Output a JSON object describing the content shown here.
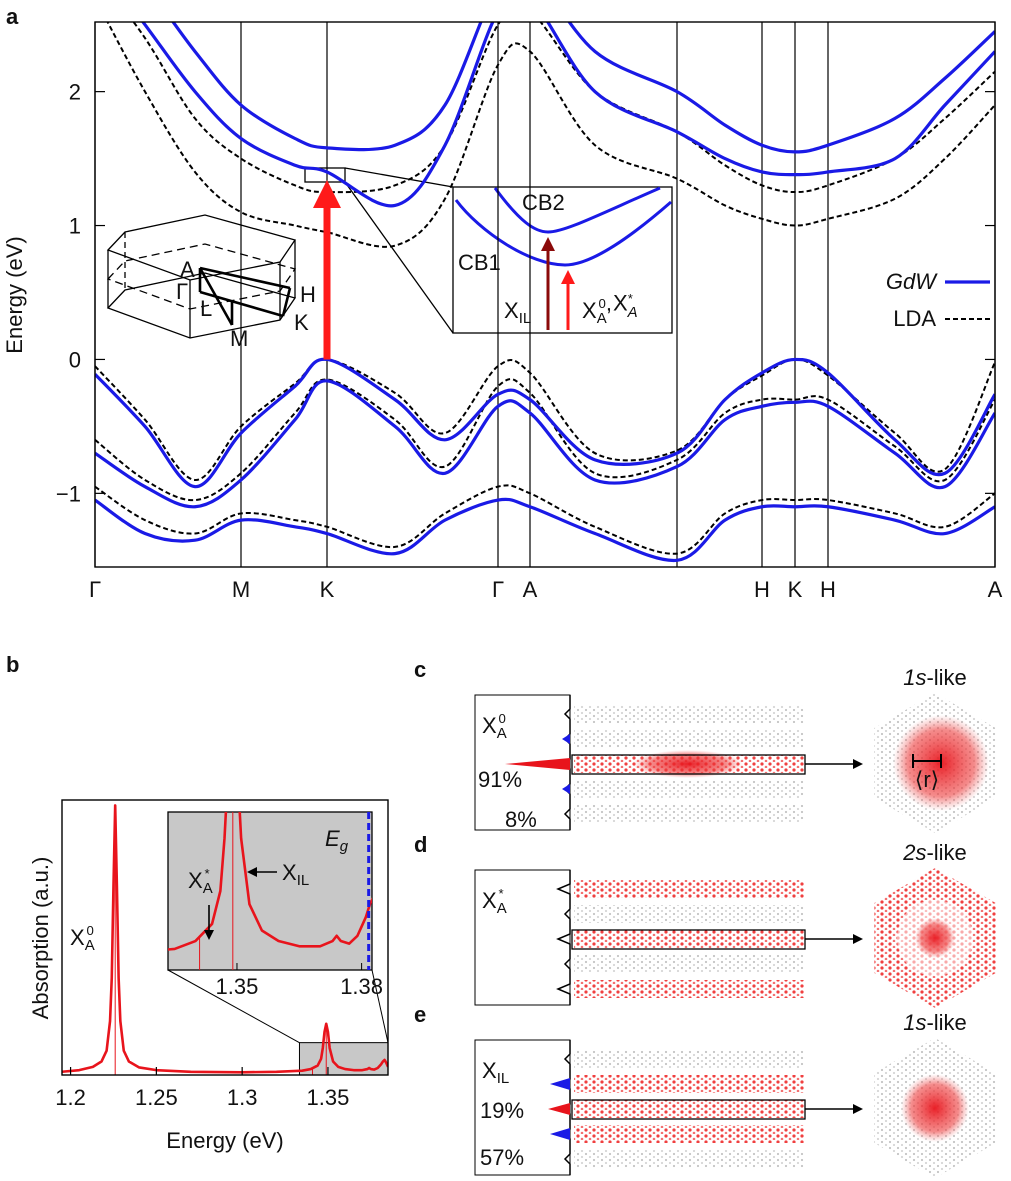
{
  "chart_data": [
    {
      "type": "line",
      "panel_label": "a",
      "ylabel": "Energy (eV)",
      "xlim": [
        0,
        9
      ],
      "ylim": [
        -1.55,
        2.52
      ],
      "xticks": [
        {
          "value": 0,
          "label": "Γ"
        },
        {
          "value": 1.46,
          "label": "M"
        },
        {
          "value": 2.32,
          "label": "K"
        },
        {
          "value": 4.03,
          "label": "Γ"
        },
        {
          "value": 4.35,
          "label": "A"
        },
        {
          "value": 5.82,
          "label": null
        },
        {
          "value": 6.67,
          "label": "H"
        },
        {
          "value": 7.0,
          "label": "K"
        },
        {
          "value": 7.33,
          "label": "H"
        },
        {
          "value": 9,
          "label": "A"
        }
      ],
      "yticks": [
        {
          "value": -1,
          "label": "−1"
        },
        0,
        1,
        2
      ],
      "x": [
        0,
        0.5,
        1,
        1.46,
        2,
        2.32,
        3,
        3.5,
        4.03,
        4.35,
        5,
        5.82,
        6.3,
        6.67,
        7,
        7.33,
        8,
        8.5,
        9
      ],
      "series": [
        {
          "name": "GdW",
          "italic": true,
          "color": "#1a1ae6",
          "dashed": false,
          "values": [
            [
              -1.05,
              -1.3,
              -1.35,
              -1.2,
              -1.25,
              -1.3,
              -1.45,
              -1.2,
              -1.05,
              -1.1,
              -1.3,
              -1.5,
              -1.2,
              -1.1,
              -1.1,
              -1.1,
              -1.2,
              -1.3,
              -1.1
            ],
            [
              -0.7,
              -0.95,
              -1.1,
              -0.9,
              -0.45,
              -0.16,
              -0.5,
              -0.85,
              -0.35,
              -0.4,
              -0.9,
              -0.8,
              -0.45,
              -0.35,
              -0.32,
              -0.35,
              -0.7,
              -0.95,
              -0.4
            ],
            [
              -0.11,
              -0.5,
              -0.95,
              -0.55,
              -0.2,
              0,
              -0.3,
              -0.6,
              -0.26,
              -0.3,
              -0.75,
              -0.7,
              -0.3,
              -0.1,
              0,
              -0.1,
              -0.6,
              -0.85,
              -0.26
            ],
            [
              3.0,
              2.5,
              2.0,
              1.65,
              1.45,
              1.4,
              1.15,
              1.6,
              2.6,
              2.7,
              2.0,
              1.7,
              1.5,
              1.4,
              1.38,
              1.4,
              1.5,
              1.9,
              2.3
            ],
            [
              3.2,
              2.8,
              2.3,
              1.9,
              1.65,
              1.58,
              1.6,
              1.9,
              2.8,
              2.9,
              2.3,
              2.0,
              1.75,
              1.6,
              1.55,
              1.6,
              1.8,
              2.1,
              2.45
            ]
          ]
        },
        {
          "name": "LDA",
          "italic": false,
          "color": "#000000",
          "dashed": true,
          "values": [
            [
              -0.95,
              -1.2,
              -1.3,
              -1.15,
              -1.2,
              -1.25,
              -1.4,
              -1.15,
              -0.95,
              -1.0,
              -1.25,
              -1.45,
              -1.15,
              -1.05,
              -1.05,
              -1.05,
              -1.15,
              -1.25,
              -1.0
            ],
            [
              -0.6,
              -0.9,
              -1.05,
              -0.85,
              -0.4,
              -0.15,
              -0.45,
              -0.8,
              -0.2,
              -0.25,
              -0.85,
              -0.75,
              -0.4,
              -0.3,
              -0.3,
              -0.3,
              -0.65,
              -0.9,
              -0.3
            ],
            [
              -0.05,
              -0.45,
              -0.9,
              -0.5,
              -0.18,
              0,
              -0.25,
              -0.55,
              -0.05,
              -0.1,
              -0.7,
              -0.68,
              -0.3,
              -0.12,
              0,
              -0.12,
              -0.55,
              -0.82,
              -0.02
            ],
            [
              2.7,
              2.0,
              1.4,
              1.1,
              1.0,
              0.95,
              0.85,
              1.2,
              2.2,
              2.3,
              1.6,
              1.35,
              1.15,
              1.05,
              1.0,
              1.05,
              1.2,
              1.5,
              1.9
            ],
            [
              2.9,
              2.4,
              1.8,
              1.5,
              1.3,
              1.25,
              1.3,
              1.6,
              2.5,
              2.6,
              2.0,
              1.7,
              1.45,
              1.3,
              1.25,
              1.3,
              1.5,
              1.8,
              2.15
            ]
          ]
        }
      ],
      "legend": "right",
      "bz_labels": [
        "A",
        "Γ",
        "L",
        "H",
        "K",
        "M"
      ],
      "zoom_labels": {
        "cb2": "CB2",
        "cb1": "CB1",
        "x_il": {
          "base": "X",
          "sub": "IL"
        },
        "x_a0": {
          "base": "X",
          "sub": "A",
          "sup": "0"
        },
        "sep": ",",
        "x_astar": {
          "base": "X",
          "sub": "A",
          "sup": "*"
        }
      }
    },
    {
      "type": "line",
      "panel_label": "b",
      "xlabel": "Energy (eV)",
      "ylabel": "Absorption (a.u.)",
      "xlim": [
        1.195,
        1.385
      ],
      "ylim": [
        0,
        1.02
      ],
      "xticks": [
        1.2,
        1.25,
        1.3,
        1.35
      ],
      "color": "#e8141c",
      "x": [
        1.195,
        1.205,
        1.213,
        1.218,
        1.221,
        1.223,
        1.224,
        1.225,
        1.226,
        1.227,
        1.228,
        1.229,
        1.231,
        1.234,
        1.24,
        1.25,
        1.27,
        1.3,
        1.32,
        1.335,
        1.34,
        1.344,
        1.346,
        1.347,
        1.348,
        1.349,
        1.35,
        1.351,
        1.353,
        1.356,
        1.36,
        1.365,
        1.37,
        1.373,
        1.374,
        1.375,
        1.377,
        1.379,
        1.381,
        1.382,
        1.383,
        1.384,
        1.385
      ],
      "values": [
        0.012,
        0.018,
        0.03,
        0.05,
        0.09,
        0.2,
        0.36,
        0.7,
        1.0,
        0.7,
        0.36,
        0.2,
        0.09,
        0.05,
        0.028,
        0.018,
        0.012,
        0.01,
        0.012,
        0.016,
        0.022,
        0.035,
        0.06,
        0.1,
        0.16,
        0.19,
        0.16,
        0.1,
        0.05,
        0.03,
        0.022,
        0.018,
        0.018,
        0.022,
        0.026,
        0.022,
        0.02,
        0.026,
        0.04,
        0.05,
        0.056,
        0.045,
        0.03
      ],
      "resonances": [
        1.226,
        1.341,
        1.349
      ],
      "peak_label": {
        "base": "X",
        "sub": "A",
        "sup": "0"
      },
      "inset": {
        "xlim": [
          1.3334,
          1.3825
        ],
        "ylim": [
          0,
          0.12
        ],
        "xticks": [
          1.35,
          1.38
        ],
        "gap": 1.3817,
        "gap_label": {
          "base": "E",
          "sub": "g"
        },
        "x_astar": {
          "base": "X",
          "sub": "A",
          "sup": "*"
        },
        "x_il": {
          "base": "X",
          "sub": "IL"
        }
      }
    }
  ],
  "panels": [
    {
      "label": "c",
      "title_em": "1s",
      "title_rest": "-like",
      "exciton": {
        "base": "X",
        "sub": "A",
        "sup": "0"
      },
      "weights": [
        "91%",
        "8%"
      ],
      "radius_label": "⟨r⟩"
    },
    {
      "label": "d",
      "title_em": "2s",
      "title_rest": "-like",
      "exciton": {
        "base": "X",
        "sub": "A",
        "sup": "*"
      },
      "weights": []
    },
    {
      "label": "e",
      "title_em": "1s",
      "title_rest": "-like",
      "exciton": {
        "base": "X",
        "sub": "IL"
      },
      "weights": [
        "19%",
        "57%"
      ]
    }
  ]
}
